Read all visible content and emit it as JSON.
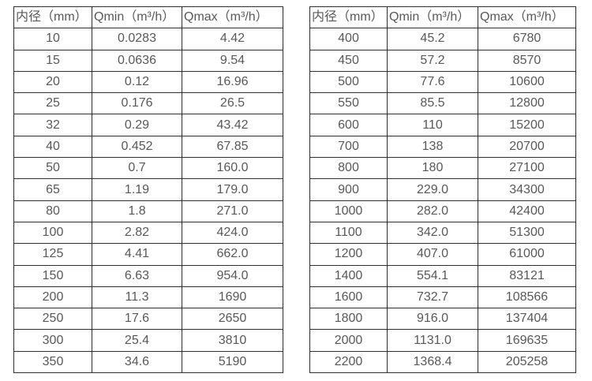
{
  "page": {
    "background_color": "#ffffff",
    "text_color": "#58585a",
    "border_color": "#2e2e2e"
  },
  "tables": [
    {
      "name": "small-diameter-flow-table",
      "headers": [
        "内径（mm）",
        "Qmin（m³/h）",
        "Qmax（m³/h）"
      ],
      "rows": [
        [
          "10",
          "0.0283",
          "4.42"
        ],
        [
          "15",
          "0.0636",
          "9.54"
        ],
        [
          "20",
          "0.12",
          "16.96"
        ],
        [
          "25",
          "0.176",
          "26.5"
        ],
        [
          "32",
          "0.29",
          "43.42"
        ],
        [
          "40",
          "0.452",
          "67.85"
        ],
        [
          "50",
          "0.7",
          "160.0"
        ],
        [
          "65",
          "1.19",
          "179.0"
        ],
        [
          "80",
          "1.8",
          "271.0"
        ],
        [
          "100",
          "2.82",
          "424.0"
        ],
        [
          "125",
          "4.41",
          "662.0"
        ],
        [
          "150",
          "6.63",
          "954.0"
        ],
        [
          "200",
          "11.3",
          "1690"
        ],
        [
          "250",
          "17.6",
          "2650"
        ],
        [
          "300",
          "25.4",
          "3810"
        ],
        [
          "350",
          "34.6",
          "5190"
        ]
      ]
    },
    {
      "name": "large-diameter-flow-table",
      "headers": [
        "内径（mm）",
        "Qmin（m³/h）",
        "Qmax（m³/h）"
      ],
      "rows": [
        [
          "400",
          "45.2",
          "6780"
        ],
        [
          "450",
          "57.2",
          "8570"
        ],
        [
          "500",
          "77.6",
          "10600"
        ],
        [
          "550",
          "85.5",
          "12800"
        ],
        [
          "600",
          "110",
          "15200"
        ],
        [
          "700",
          "138",
          "20700"
        ],
        [
          "800",
          "180",
          "27100"
        ],
        [
          "900",
          "229.0",
          "34300"
        ],
        [
          "1000",
          "282.0",
          "42400"
        ],
        [
          "1100",
          "342.0",
          "51300"
        ],
        [
          "1200",
          "407.0",
          "61000"
        ],
        [
          "1400",
          "554.1",
          "83121"
        ],
        [
          "1600",
          "732.7",
          "108566"
        ],
        [
          "1800",
          "916.0",
          "137404"
        ],
        [
          "2000",
          "1131.0",
          "169635"
        ],
        [
          "2200",
          "1368.4",
          "205258"
        ]
      ]
    }
  ]
}
